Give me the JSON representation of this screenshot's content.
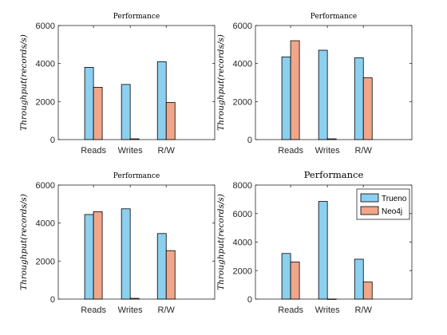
{
  "colors": {
    "Trueno": "#8ccfee",
    "Neo4j": "#f1a689",
    "axis": "#262626"
  },
  "chart_data": [
    {
      "type": "bar",
      "title": "Performance",
      "ylabel": "Throughput(records/s)",
      "categories": [
        "Reads",
        "Writes",
        "R/W"
      ],
      "ylim": [
        0,
        6000
      ],
      "yticks": [
        "0",
        "2000",
        "4000",
        "6000"
      ],
      "series": [
        {
          "name": "Trueno",
          "values": [
            3800,
            2900,
            4100
          ]
        },
        {
          "name": "Neo4j",
          "values": [
            2750,
            40,
            1950
          ]
        }
      ],
      "legend": null
    },
    {
      "type": "bar",
      "title": "Performance",
      "ylabel": "Throughput(records/s)",
      "categories": [
        "Reads",
        "Writes",
        "R/W"
      ],
      "ylim": [
        0,
        6000
      ],
      "yticks": [
        "0",
        "2000",
        "4000",
        "6000"
      ],
      "series": [
        {
          "name": "Trueno",
          "values": [
            4350,
            4700,
            4300
          ]
        },
        {
          "name": "Neo4j",
          "values": [
            5200,
            40,
            3250
          ]
        }
      ],
      "legend": null
    },
    {
      "type": "bar",
      "title": "Performance",
      "ylabel": "Throughput(records/s)",
      "categories": [
        "Reads",
        "Writes",
        "R/W"
      ],
      "ylim": [
        0,
        6000
      ],
      "yticks": [
        "0",
        "2000",
        "4000",
        "6000"
      ],
      "series": [
        {
          "name": "Trueno",
          "values": [
            4450,
            4750,
            3450
          ]
        },
        {
          "name": "Neo4j",
          "values": [
            4600,
            40,
            2550
          ]
        }
      ],
      "legend": null
    },
    {
      "type": "bar",
      "title": "Performance",
      "ylabel": "Throughput(records/s)",
      "categories": [
        "Reads",
        "Writes",
        "R/W"
      ],
      "ylim": [
        0,
        8000
      ],
      "yticks": [
        "0",
        "2000",
        "4000",
        "6000",
        "8000"
      ],
      "series": [
        {
          "name": "Trueno",
          "values": [
            3200,
            6850,
            2800
          ]
        },
        {
          "name": "Neo4j",
          "values": [
            2600,
            10,
            1200
          ]
        }
      ],
      "legend": "top-right"
    }
  ]
}
